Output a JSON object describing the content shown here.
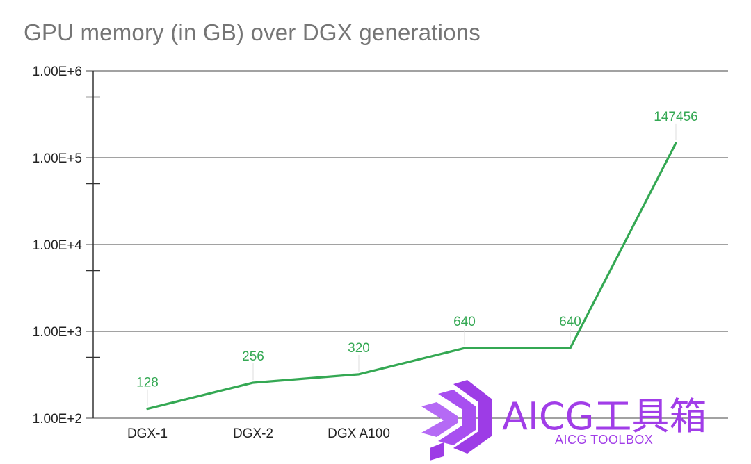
{
  "chart_data": {
    "type": "line",
    "title": "GPU memory (in GB) over DGX generations",
    "xlabel": "",
    "ylabel": "",
    "yscale": "log",
    "ylim": [
      100,
      1000000
    ],
    "y_ticks": [
      "1.00E+2",
      "1.00E+3",
      "1.00E+4",
      "1.00E+5",
      "1.00E+6"
    ],
    "grid": true,
    "legend": "none",
    "categories": [
      "DGX-1",
      "DGX-2",
      "DGX A100",
      "",
      "",
      ""
    ],
    "series": [
      {
        "values": [
          128,
          256,
          320,
          640,
          640,
          147456
        ],
        "color": "#34a853"
      }
    ],
    "data_labels": [
      "128",
      "256",
      "320",
      "640",
      "640",
      "147456"
    ]
  },
  "watermark": {
    "text": "AICG工具箱",
    "subtext": "AICG TOOLBOX",
    "color": "#a13de8"
  }
}
